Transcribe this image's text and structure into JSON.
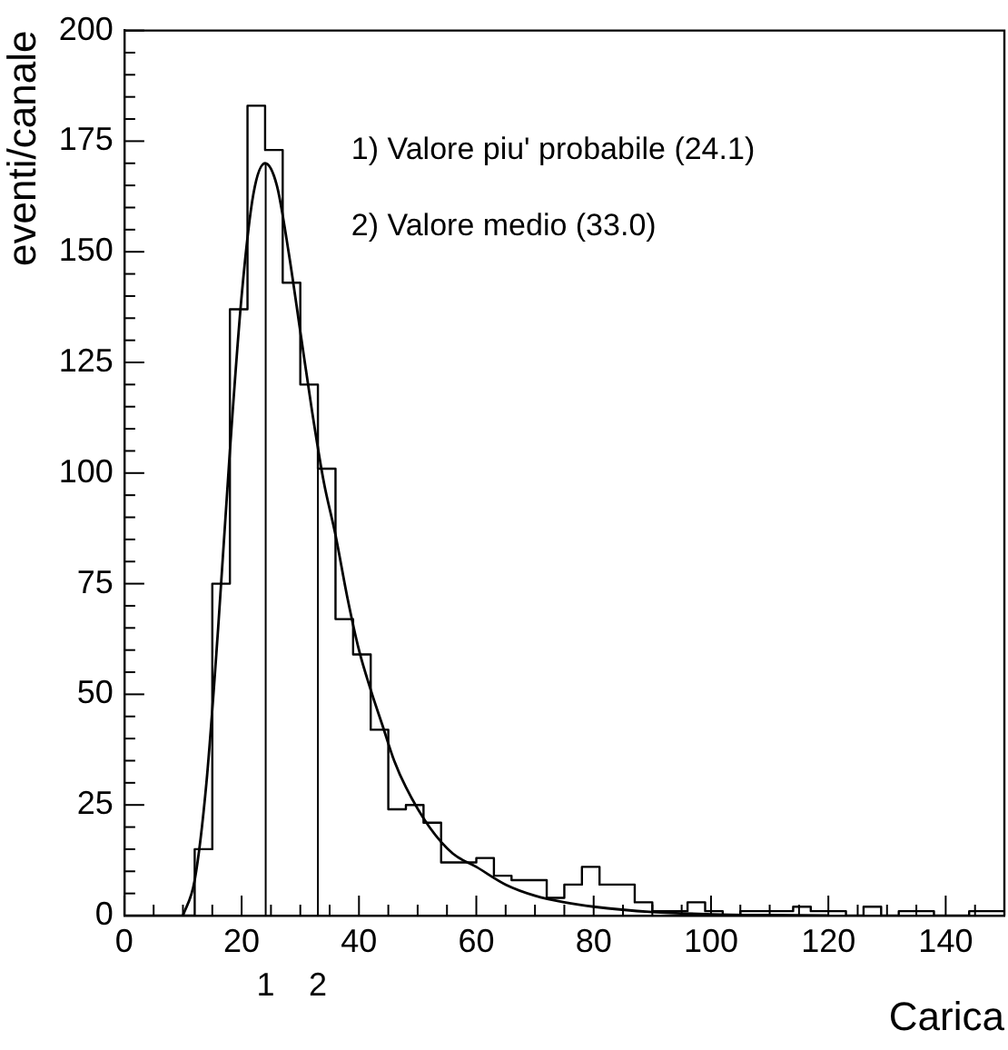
{
  "chart_data": {
    "type": "histogram",
    "xlabel": "Carica",
    "ylabel": "eventi/canale",
    "annotations": [
      "1) Valore piu' probabile (24.1)",
      "2) Valore medio (33.0)",
      {
        "text": "1",
        "x": 24.1,
        "y": 0
      },
      {
        "text": "2",
        "x": 33.0,
        "y": 0
      }
    ],
    "bins": [
      0,
      3,
      6,
      9,
      12,
      15,
      18,
      21,
      24,
      27,
      30,
      33,
      36,
      39,
      42,
      45,
      48,
      51,
      54,
      57,
      60,
      63,
      66,
      69,
      72,
      75,
      78,
      81,
      84,
      87,
      90,
      93,
      96,
      99,
      102,
      105,
      108,
      111,
      114,
      117,
      120,
      123,
      126,
      129,
      132,
      135,
      138,
      141,
      144,
      147,
      150
    ],
    "values": [
      0,
      0,
      0,
      0,
      15,
      75,
      137,
      183,
      173,
      143,
      120,
      101,
      67,
      59,
      42,
      24,
      25,
      21,
      12,
      12,
      13,
      9,
      8,
      8,
      4,
      7,
      11,
      7,
      7,
      3,
      1,
      1,
      3,
      1,
      0,
      1,
      1,
      1,
      2,
      1,
      1,
      0,
      2,
      0,
      1,
      1,
      0,
      0,
      1,
      1
    ],
    "color": "#000000",
    "series": [
      {
        "type": "line",
        "color": "#000000",
        "x": [
          10,
          12,
          14,
          16,
          18,
          20,
          22,
          24,
          26,
          28,
          30,
          32,
          34,
          36,
          38,
          40,
          42,
          44,
          46,
          48,
          52,
          56,
          60,
          65,
          70,
          75,
          80,
          90,
          100,
          110,
          120
        ],
        "values": [
          0,
          8,
          30,
          65,
          105,
          140,
          163,
          170,
          165,
          150,
          132,
          114,
          98,
          86,
          72,
          60,
          51,
          43,
          35,
          29,
          20,
          14,
          11,
          7,
          4.5,
          3,
          2,
          0.8,
          0.3,
          0.1,
          0
        ]
      }
    ],
    "ref_lines": [
      {
        "axis": "x",
        "value": 24.1
      },
      {
        "axis": "x",
        "value": 33.0
      }
    ],
    "xlim": [
      0,
      150
    ],
    "ylim": [
      0,
      200
    ],
    "xticks": [
      0,
      {
        "value": 5,
        "label": null
      },
      {
        "value": 10,
        "label": null
      },
      {
        "value": 15,
        "label": null
      },
      20,
      {
        "value": 25,
        "label": null
      },
      {
        "value": 30,
        "label": null
      },
      {
        "value": 35,
        "label": null
      },
      40,
      {
        "value": 45,
        "label": null
      },
      {
        "value": 50,
        "label": null
      },
      {
        "value": 55,
        "label": null
      },
      60,
      {
        "value": 65,
        "label": null
      },
      {
        "value": 70,
        "label": null
      },
      {
        "value": 75,
        "label": null
      },
      80,
      {
        "value": 85,
        "label": null
      },
      {
        "value": 90,
        "label": null
      },
      {
        "value": 95,
        "label": null
      },
      100,
      {
        "value": 105,
        "label": null
      },
      {
        "value": 110,
        "label": null
      },
      {
        "value": 115,
        "label": null
      },
      120,
      {
        "value": 125,
        "label": null
      },
      {
        "value": 130,
        "label": null
      },
      {
        "value": 135,
        "label": null
      },
      140,
      {
        "value": 145,
        "label": null
      }
    ],
    "yticks": [
      0,
      {
        "value": 5,
        "label": null
      },
      {
        "value": 10,
        "label": null
      },
      {
        "value": 15,
        "label": null
      },
      {
        "value": 20,
        "label": null
      },
      25,
      {
        "value": 30,
        "label": null
      },
      {
        "value": 35,
        "label": null
      },
      {
        "value": 40,
        "label": null
      },
      {
        "value": 45,
        "label": null
      },
      50,
      {
        "value": 55,
        "label": null
      },
      {
        "value": 60,
        "label": null
      },
      {
        "value": 65,
        "label": null
      },
      {
        "value": 70,
        "label": null
      },
      75,
      {
        "value": 80,
        "label": null
      },
      {
        "value": 85,
        "label": null
      },
      {
        "value": 90,
        "label": null
      },
      {
        "value": 95,
        "label": null
      },
      100,
      {
        "value": 105,
        "label": null
      },
      {
        "value": 110,
        "label": null
      },
      {
        "value": 115,
        "label": null
      },
      {
        "value": 120,
        "label": null
      },
      125,
      {
        "value": 130,
        "label": null
      },
      {
        "value": 135,
        "label": null
      },
      {
        "value": 140,
        "label": null
      },
      {
        "value": 145,
        "label": null
      },
      150,
      {
        "value": 155,
        "label": null
      },
      {
        "value": 160,
        "label": null
      },
      {
        "value": 165,
        "label": null
      },
      {
        "value": 170,
        "label": null
      },
      175,
      {
        "value": 180,
        "label": null
      },
      {
        "value": 185,
        "label": null
      },
      {
        "value": 190,
        "label": null
      },
      {
        "value": 195,
        "label": null
      },
      200
    ],
    "grid": false,
    "legend": false
  }
}
